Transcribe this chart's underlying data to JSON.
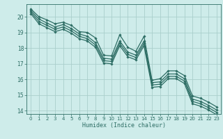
{
  "xlabel": "Humidex (Indice chaleur)",
  "background_color": "#ceecea",
  "grid_color": "#aacfcc",
  "line_color": "#2e6e65",
  "xlim": [
    -0.5,
    23.5
  ],
  "ylim": [
    13.8,
    20.8
  ],
  "yticks": [
    14,
    15,
    16,
    17,
    18,
    19,
    20
  ],
  "xticks": [
    0,
    1,
    2,
    3,
    4,
    5,
    6,
    7,
    8,
    9,
    10,
    11,
    12,
    13,
    14,
    15,
    16,
    17,
    18,
    19,
    20,
    21,
    22,
    23
  ],
  "series": [
    [
      20.5,
      20.0,
      19.8,
      19.55,
      19.65,
      19.45,
      19.05,
      19.0,
      18.65,
      17.55,
      17.5,
      18.85,
      18.05,
      17.8,
      18.75,
      15.95,
      16.05,
      16.55,
      16.55,
      16.25,
      14.95,
      14.8,
      14.55,
      14.25
    ],
    [
      20.4,
      19.85,
      19.6,
      19.35,
      19.5,
      19.25,
      18.9,
      18.75,
      18.35,
      17.35,
      17.3,
      18.45,
      17.75,
      17.55,
      18.45,
      15.8,
      15.85,
      16.35,
      16.35,
      16.05,
      14.75,
      14.6,
      14.35,
      14.05
    ],
    [
      20.3,
      19.7,
      19.45,
      19.2,
      19.35,
      19.1,
      18.75,
      18.6,
      18.2,
      17.2,
      17.15,
      18.3,
      17.6,
      17.4,
      18.3,
      15.65,
      15.7,
      16.2,
      16.2,
      15.9,
      14.6,
      14.45,
      14.2,
      13.9
    ],
    [
      20.2,
      19.55,
      19.3,
      19.05,
      19.2,
      18.95,
      18.6,
      18.45,
      18.05,
      17.05,
      17.0,
      18.15,
      17.45,
      17.25,
      18.15,
      15.5,
      15.55,
      16.05,
      16.05,
      15.75,
      14.45,
      14.3,
      14.05,
      13.75
    ]
  ]
}
